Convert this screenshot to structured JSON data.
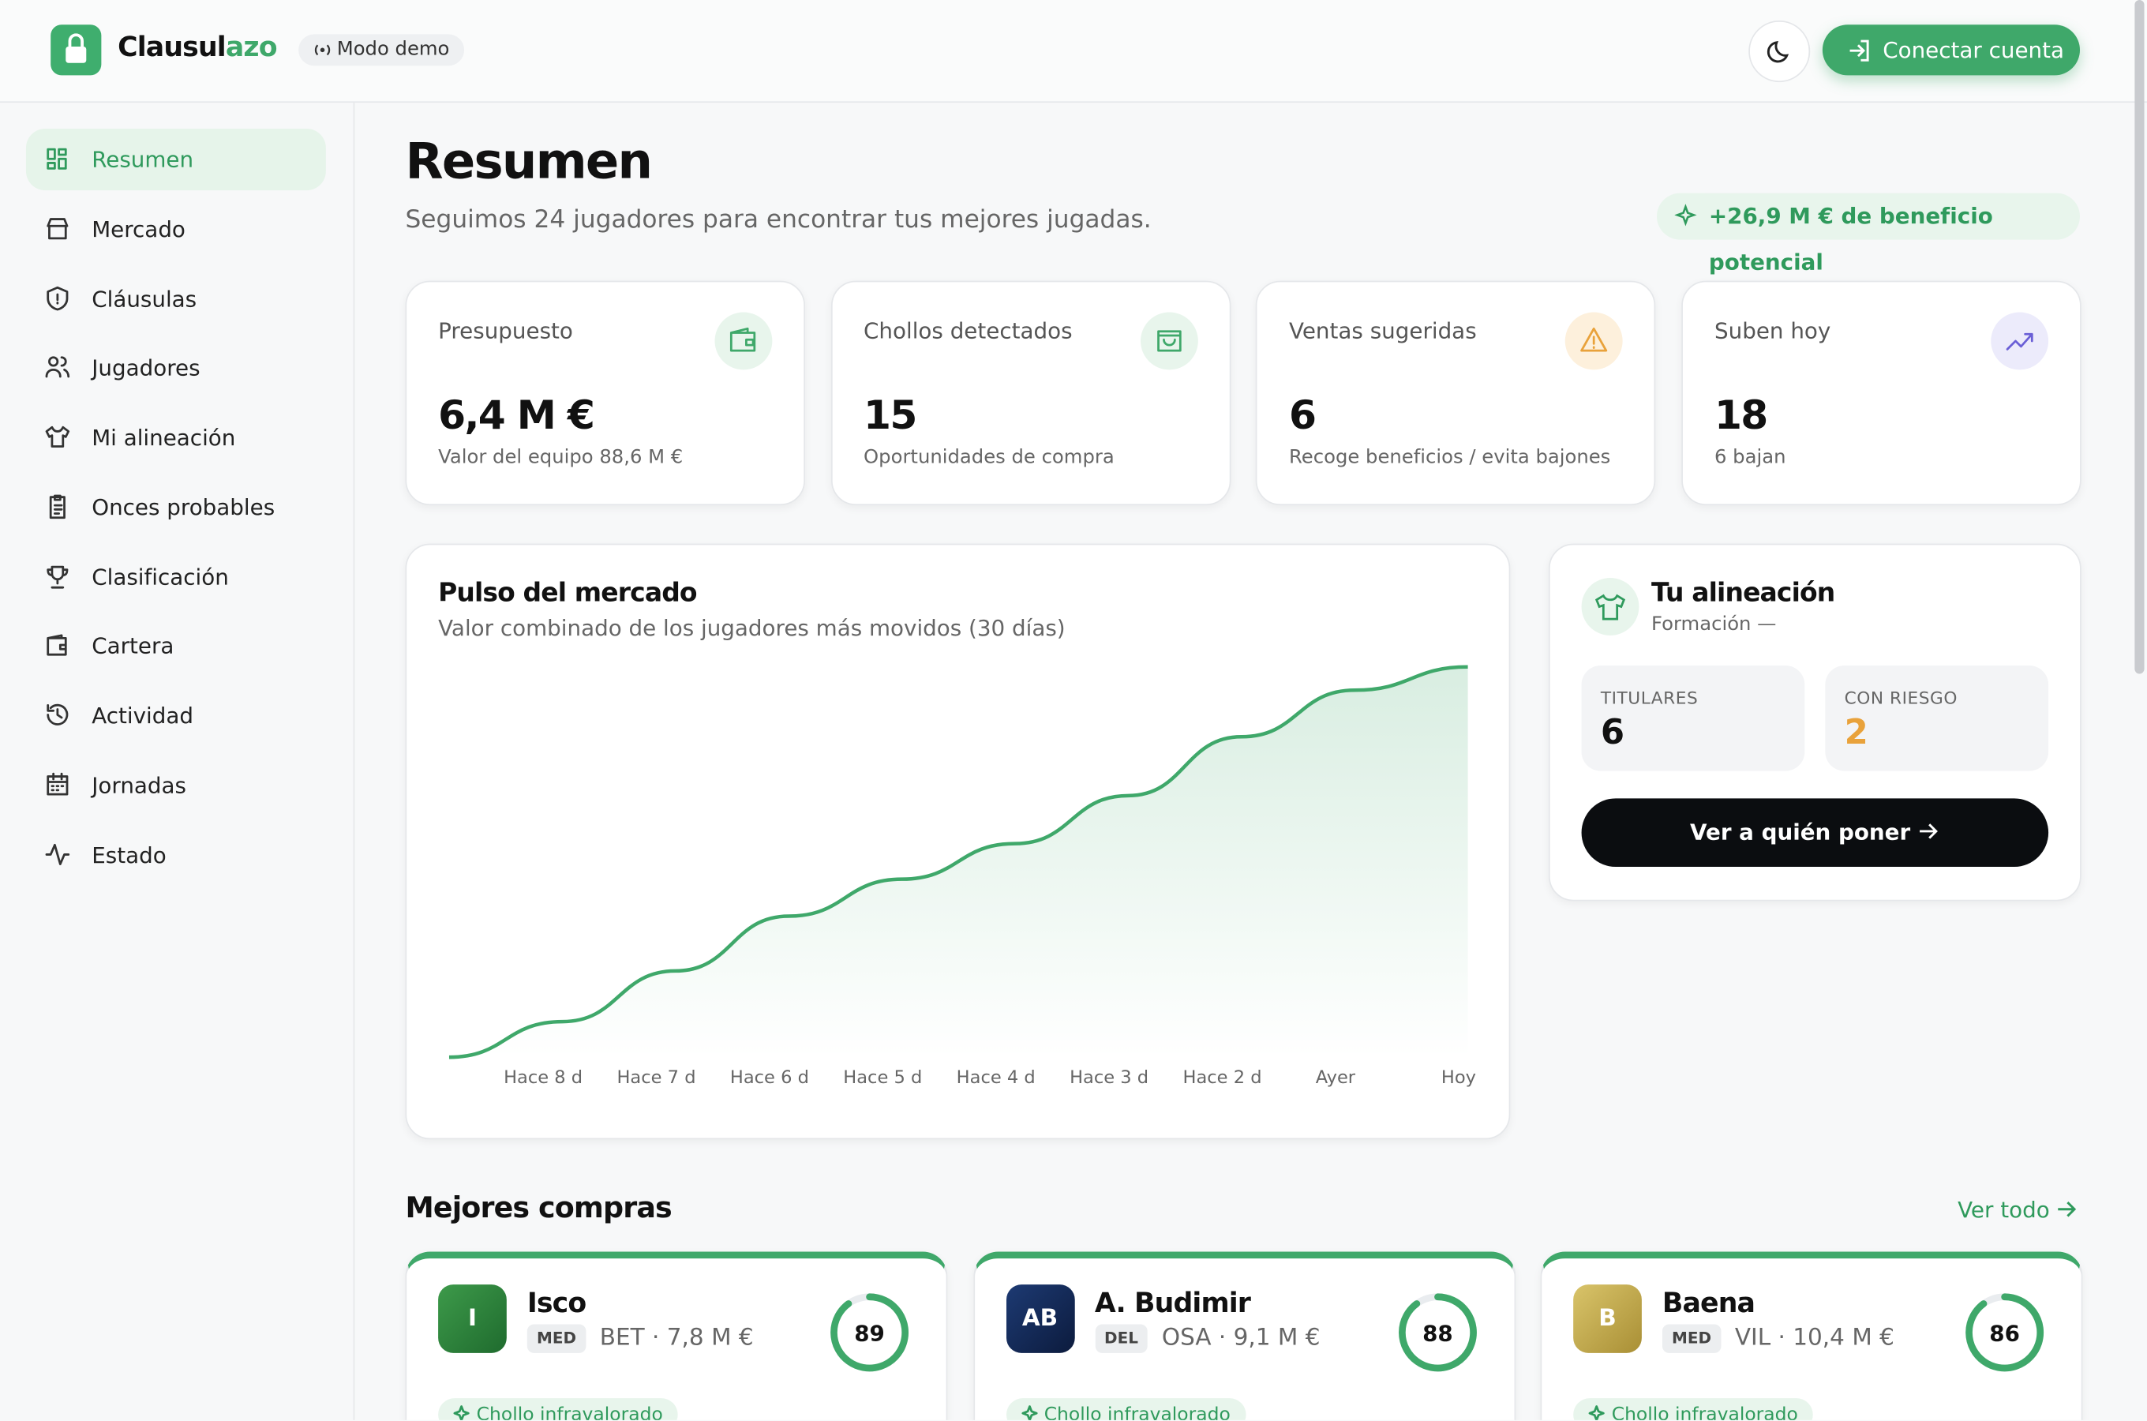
{
  "header": {
    "brand_a": "Clausul",
    "brand_b": "azo",
    "demo_badge": "Modo demo",
    "connect_button": "Conectar cuenta"
  },
  "sidebar": {
    "active_item": 0,
    "items": [
      "Resumen",
      "Mercado",
      "Cláusulas",
      "Jugadores",
      "Mi alineación",
      "Onces probables",
      "Clasificación",
      "Cartera",
      "Actividad",
      "Jornadas",
      "Estado"
    ]
  },
  "page": {
    "title": "Resumen",
    "subtitle": "Seguimos 24 jugadores para encontrar tus mejores jugadas.",
    "profit_badge": "+26,9 M € de beneficio potencial"
  },
  "stats": [
    {
      "label": "Presupuesto",
      "value": "6,4 M €",
      "note": "Valor del equipo 88,6 M €"
    },
    {
      "label": "Chollos detectados",
      "value": "15",
      "note": "Oportunidades de compra"
    },
    {
      "label": "Ventas sugeridas",
      "value": "6",
      "note": "Recoge beneficios / evita bajones"
    },
    {
      "label": "Suben hoy",
      "value": "18",
      "note": "6 bajan"
    }
  ],
  "market_chart": {
    "type": "line",
    "title": "Pulso del mercado",
    "subtitle": "Valor combinado de los jugadores más movidos (30 días)",
    "color": "#3fa86a",
    "categories": [
      null,
      "Hace 8 d",
      "Hace 7 d",
      "Hace 6 d",
      "Hace 5 d",
      "Hace 4 d",
      "Hace 3 d",
      "Hace 2 d",
      "Ayer",
      "Hoy"
    ],
    "values": [
      2.9,
      5.5,
      9.2,
      13.2,
      15.9,
      18.5,
      22.0,
      26.3,
      29.7,
      31.4
    ]
  },
  "lineup": {
    "title": "Tu alineación",
    "subtitle": "Formación —",
    "starters_label": "TITULARES",
    "starters": 6,
    "risk_label": "CON RIESGO",
    "risk": 2,
    "button": "Ver a quién poner"
  },
  "best_buys": {
    "title": "Mejores compras",
    "see_all": "Ver todo",
    "players": [
      {
        "initials": "I",
        "name": "Isco",
        "position": "MED",
        "info": "BET · 7,8 M €",
        "score": 89,
        "tag": "Chollo infravalorado"
      },
      {
        "initials": "AB",
        "name": "A. Budimir",
        "position": "DEL",
        "info": "OSA · 9,1 M €",
        "score": 88,
        "tag": "Chollo infravalorado"
      },
      {
        "initials": "B",
        "name": "Baena",
        "position": "MED",
        "info": "VIL · 10,4 M €",
        "score": 86,
        "tag": "Chollo infravalorado"
      }
    ]
  }
}
